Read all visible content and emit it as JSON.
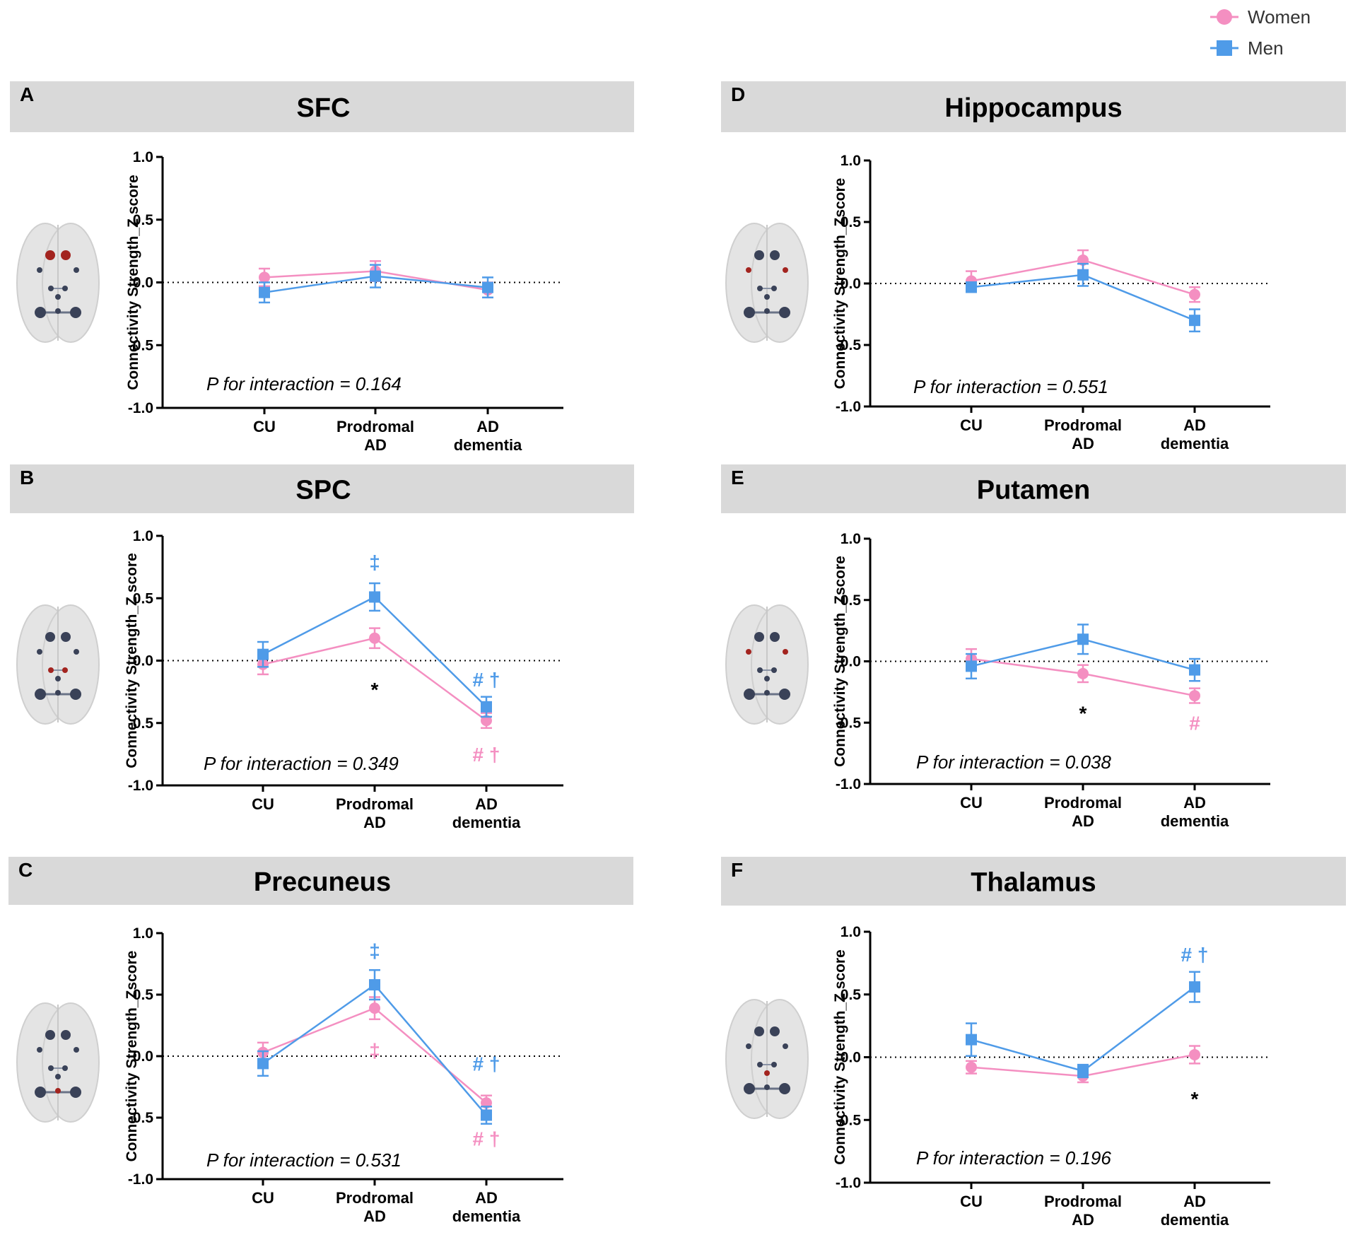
{
  "legend": {
    "women": {
      "label": "Women",
      "color": "#f48fc1"
    },
    "men": {
      "label": "Men",
      "color": "#4f9be8"
    }
  },
  "chart_data": [
    {
      "type": "line",
      "letter": "A",
      "title": "SFC",
      "ylabel": "Connectivity Strength_Z score",
      "categories": [
        "CU",
        "Prodromal AD",
        "AD dementia"
      ],
      "ylim": [
        -1.0,
        1.0
      ],
      "yticks": [
        "1.0",
        "0.5",
        "0.0",
        "-0.5",
        "-1.0"
      ],
      "p_interaction": "P for interaction = 0.164",
      "series": [
        {
          "name": "Women",
          "values": [
            0.04,
            0.09,
            -0.06
          ],
          "errors": [
            0.07,
            0.08,
            0.06
          ]
        },
        {
          "name": "Men",
          "values": [
            -0.08,
            0.05,
            -0.04
          ],
          "errors": [
            0.08,
            0.09,
            0.08
          ]
        }
      ],
      "annotations": []
    },
    {
      "type": "line",
      "letter": "B",
      "title": "SPC",
      "ylabel": "Connectivity Strength_Z score",
      "categories": [
        "CU",
        "Prodromal AD",
        "AD dementia"
      ],
      "ylim": [
        -1.0,
        1.0
      ],
      "yticks": [
        "1.0",
        "0.5",
        "0.0",
        "-0.5",
        "-1.0"
      ],
      "p_interaction": "P for interaction = 0.349",
      "series": [
        {
          "name": "Women",
          "values": [
            -0.03,
            0.18,
            -0.48
          ],
          "errors": [
            0.08,
            0.08,
            0.06
          ]
        },
        {
          "name": "Men",
          "values": [
            0.05,
            0.51,
            -0.37
          ],
          "errors": [
            0.1,
            0.11,
            0.08
          ]
        }
      ],
      "annotations": [
        {
          "text": "‡",
          "color": "men",
          "cat": 1,
          "y": 0.79
        },
        {
          "text": "*",
          "color": "black",
          "cat": 1,
          "y": -0.23
        },
        {
          "text": "# †",
          "color": "men",
          "cat": 2,
          "y": -0.15
        },
        {
          "text": "# †",
          "color": "women",
          "cat": 2,
          "y": -0.75
        }
      ]
    },
    {
      "type": "line",
      "letter": "C",
      "title": "Precuneus",
      "ylabel": "Connectivity Strength_Zscore",
      "categories": [
        "CU",
        "Prodromal AD",
        "AD dementia"
      ],
      "ylim": [
        -1.0,
        1.0
      ],
      "yticks": [
        "1.0",
        "0.5",
        "0.0",
        "-0.5",
        "-1.0"
      ],
      "p_interaction": "P for interaction = 0.531",
      "series": [
        {
          "name": "Women",
          "values": [
            0.03,
            0.39,
            -0.38
          ],
          "errors": [
            0.08,
            0.09,
            0.06
          ]
        },
        {
          "name": "Men",
          "values": [
            -0.06,
            0.58,
            -0.48
          ],
          "errors": [
            0.1,
            0.12,
            0.07
          ]
        }
      ],
      "annotations": [
        {
          "text": "‡",
          "color": "men",
          "cat": 1,
          "y": 0.86
        },
        {
          "text": "‡",
          "color": "women",
          "cat": 1,
          "y": 0.05
        },
        {
          "text": "# †",
          "color": "men",
          "cat": 2,
          "y": -0.06
        },
        {
          "text": "# †",
          "color": "women",
          "cat": 2,
          "y": -0.67
        }
      ]
    },
    {
      "type": "line",
      "letter": "D",
      "title": "Hippocampus",
      "ylabel": "Connectivity Strength_Zscore",
      "categories": [
        "CU",
        "Prodromal AD",
        "AD dementia"
      ],
      "ylim": [
        -1.0,
        1.0
      ],
      "yticks": [
        "1.0",
        "0.5",
        "0.0",
        "-0.5",
        "-1.0"
      ],
      "p_interaction": "P for interaction = 0.551",
      "series": [
        {
          "name": "Women",
          "values": [
            0.02,
            0.19,
            -0.09
          ],
          "errors": [
            0.08,
            0.08,
            0.06
          ]
        },
        {
          "name": "Men",
          "values": [
            -0.03,
            0.07,
            -0.3
          ],
          "errors": [
            0.04,
            0.09,
            0.09
          ]
        }
      ],
      "annotations": []
    },
    {
      "type": "line",
      "letter": "E",
      "title": "Putamen",
      "ylabel": "Connectivity Strength_Zscore",
      "categories": [
        "CU",
        "Prodromal AD",
        "AD dementia"
      ],
      "ylim": [
        -1.0,
        1.0
      ],
      "yticks": [
        "1.0",
        "0.5",
        "0.0",
        "-0.5",
        "-1.0"
      ],
      "p_interaction": "P for interaction = 0.038",
      "series": [
        {
          "name": "Women",
          "values": [
            0.02,
            -0.1,
            -0.28
          ],
          "errors": [
            0.08,
            0.07,
            0.06
          ]
        },
        {
          "name": "Men",
          "values": [
            -0.04,
            0.18,
            -0.07
          ],
          "errors": [
            0.1,
            0.12,
            0.09
          ]
        }
      ],
      "annotations": [
        {
          "text": "*",
          "color": "black",
          "cat": 1,
          "y": -0.42
        },
        {
          "text": "#",
          "color": "women",
          "cat": 2,
          "y": -0.5
        }
      ]
    },
    {
      "type": "line",
      "letter": "F",
      "title": "Thalamus",
      "ylabel": "Connectivity Strength_Z score",
      "categories": [
        "CU",
        "Prodromal AD",
        "AD dementia"
      ],
      "ylim": [
        -1.0,
        1.0
      ],
      "yticks": [
        "1.0",
        "0.5",
        "0.0",
        "-0.5",
        "-1.0"
      ],
      "p_interaction": "P for interaction = 0.196",
      "series": [
        {
          "name": "Women",
          "values": [
            -0.08,
            -0.15,
            0.02
          ],
          "errors": [
            0.05,
            0.05,
            0.07
          ]
        },
        {
          "name": "Men",
          "values": [
            0.14,
            -0.11,
            0.56
          ],
          "errors": [
            0.13,
            0.05,
            0.12
          ]
        }
      ],
      "annotations": [
        {
          "text": "# †",
          "color": "men",
          "cat": 2,
          "y": 0.82
        },
        {
          "text": "*",
          "color": "black",
          "cat": 2,
          "y": -0.33
        }
      ]
    }
  ]
}
